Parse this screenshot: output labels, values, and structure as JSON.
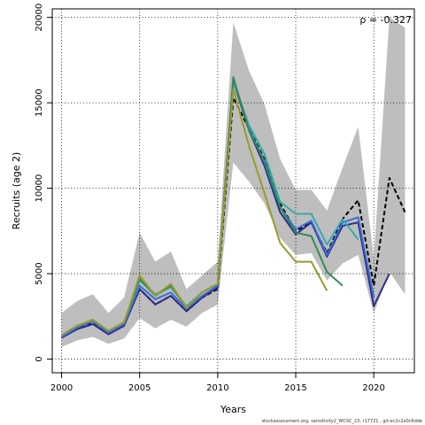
{
  "chart_data": {
    "type": "line",
    "title": "",
    "xlabel": "Years",
    "ylabel": "Recruits (age 2)",
    "annotation": "ρ = -0.327",
    "caption": "stockassessment.org, sensitivity2_WCSC_23, r17721 , git:ec2c2a0c6dde",
    "xlim": [
      1999.4,
      2022.6
    ],
    "ylim": [
      -800,
      20500
    ],
    "x_ticks": [
      2000,
      2005,
      2010,
      2015,
      2020
    ],
    "y_ticks": [
      0,
      5000,
      10000,
      15000,
      20000
    ],
    "grid": true,
    "confidence_band": {
      "x": [
        2000,
        2001,
        2002,
        2003,
        2004,
        2005,
        2006,
        2007,
        2008,
        2009,
        2010,
        2011,
        2012,
        2013,
        2014,
        2015,
        2016,
        2017,
        2018,
        2019,
        2020,
        2021,
        2022
      ],
      "lower": [
        700,
        1100,
        1300,
        900,
        1200,
        2400,
        1800,
        2300,
        1900,
        2700,
        3200,
        11500,
        10400,
        9100,
        7100,
        6100,
        6200,
        4600,
        5600,
        6100,
        2700,
        5100,
        3800
      ],
      "upper": [
        2700,
        3400,
        3800,
        2700,
        3600,
        7400,
        5700,
        6300,
        4100,
        4900,
        5700,
        19700,
        16900,
        14900,
        11700,
        9900,
        9900,
        8700,
        11200,
        13600,
        5900,
        20000,
        19400
      ],
      "color": "#bebebe"
    },
    "series": [
      {
        "name": "",
        "color": "#000000",
        "dashed": true,
        "x": [
          2000,
          2001,
          2002,
          2003,
          2004,
          2005,
          2006,
          2007,
          2008,
          2009,
          2010,
          2011,
          2012,
          2013,
          2014,
          2015,
          2016,
          2017,
          2018,
          2019,
          2020,
          2021,
          2022
        ],
        "y": [
          1300,
          1800,
          2100,
          1500,
          2000,
          4100,
          3200,
          3700,
          2800,
          3600,
          4100,
          15300,
          13500,
          11700,
          9100,
          7500,
          8000,
          6200,
          8200,
          9300,
          4300,
          10600,
          8600
        ]
      },
      {
        "name": "",
        "color": "#2c2c8c",
        "dashed": false,
        "x": [
          2000,
          2001,
          2002,
          2003,
          2004,
          2005,
          2006,
          2007,
          2008,
          2009,
          2010,
          2011,
          2012,
          2013,
          2014,
          2015,
          2016,
          2017,
          2018,
          2019,
          2020,
          2021
        ],
        "y": [
          1250,
          1750,
          2050,
          1450,
          1950,
          4100,
          3200,
          3700,
          2800,
          3600,
          4200,
          16300,
          13400,
          11300,
          8600,
          7300,
          8000,
          6000,
          7800,
          8000,
          3100,
          5000
        ]
      },
      {
        "name": "",
        "color": "#3b6fd6",
        "dashed": false,
        "x": [
          2000,
          2001,
          2002,
          2003,
          2004,
          2005,
          2006,
          2007,
          2008,
          2009,
          2010,
          2011,
          2012,
          2013,
          2014,
          2015,
          2016,
          2017,
          2018,
          2019,
          2020
        ],
        "y": [
          1300,
          1850,
          2200,
          1550,
          2050,
          4300,
          3500,
          3900,
          2950,
          3700,
          4300,
          16400,
          13500,
          11500,
          8900,
          7600,
          8100,
          6100,
          8000,
          8300,
          3600
        ]
      },
      {
        "name": "",
        "color": "#3aa8a8",
        "dashed": false,
        "x": [
          2000,
          2001,
          2002,
          2003,
          2004,
          2005,
          2006,
          2007,
          2008,
          2009,
          2010,
          2011,
          2012,
          2013,
          2014,
          2015,
          2016,
          2017,
          2018,
          2019
        ],
        "y": [
          1400,
          1950,
          2300,
          1650,
          2150,
          4600,
          3800,
          4200,
          3100,
          3900,
          4400,
          16300,
          13700,
          12000,
          9200,
          8500,
          8500,
          6700,
          8200,
          7000
        ]
      },
      {
        "name": "",
        "color": "#2e8b57",
        "dashed": false,
        "x": [
          2000,
          2001,
          2002,
          2003,
          2004,
          2005,
          2006,
          2007,
          2008,
          2009,
          2010,
          2011,
          2012,
          2013,
          2014,
          2015,
          2016,
          2017,
          2018
        ],
        "y": [
          1400,
          1950,
          2300,
          1650,
          2150,
          4700,
          3700,
          4300,
          3000,
          3900,
          4400,
          16500,
          13400,
          11600,
          8900,
          7400,
          7200,
          5100,
          4300
        ]
      },
      {
        "name": "",
        "color": "#9a9a2a",
        "dashed": false,
        "x": [
          2000,
          2001,
          2002,
          2003,
          2004,
          2005,
          2006,
          2007,
          2008,
          2009,
          2010,
          2011,
          2012,
          2013,
          2014,
          2015,
          2016,
          2017
        ],
        "y": [
          1400,
          1950,
          2300,
          1650,
          2150,
          4900,
          3700,
          4400,
          3000,
          3900,
          4400,
          15800,
          12500,
          9700,
          6800,
          5700,
          5700,
          4000
        ]
      }
    ]
  }
}
